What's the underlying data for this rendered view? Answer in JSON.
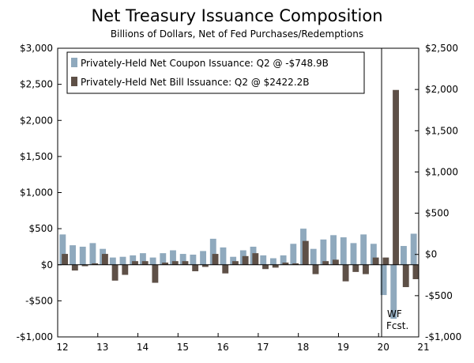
{
  "chart_data": {
    "type": "bar",
    "title": "Net Treasury Issuance Composition",
    "subtitle": "Billions of Dollars, Net of Fed Purchases/Redemptions",
    "left_axis": {
      "min": -1000,
      "max": 3000,
      "ticks": [
        "$3,000",
        "$2,500",
        "$2,000",
        "$1,500",
        "$1,000",
        "$500",
        "$0",
        "-$500",
        "-$1,000"
      ],
      "tick_values": [
        3000,
        2500,
        2000,
        1500,
        1000,
        500,
        0,
        -500,
        -1000
      ]
    },
    "right_axis": {
      "min": -1000,
      "max": 2500,
      "ticks": [
        "$2,500",
        "$2,000",
        "$1,500",
        "$1,000",
        "$500",
        "$0",
        "-$500",
        "-$1,000"
      ],
      "tick_values": [
        2500,
        2000,
        1500,
        1000,
        500,
        0,
        -500,
        -1000
      ]
    },
    "x_labels": [
      "12",
      "13",
      "14",
      "15",
      "16",
      "17",
      "18",
      "19",
      "20",
      "21"
    ],
    "legend": [
      "Privately-Held Net Coupon Issuance: Q2 @ -$748.9B",
      "Privately-Held Net Bill Issuance: Q2 @ $2422.2B"
    ],
    "annotation": {
      "line1": "WF",
      "line2": "Fcst."
    },
    "series": [
      {
        "name": "coupon",
        "color": "#8fa9bd",
        "values": [
          420,
          270,
          250,
          300,
          220,
          100,
          110,
          130,
          160,
          100,
          160,
          200,
          150,
          140,
          190,
          360,
          240,
          110,
          200,
          250,
          130,
          90,
          130,
          290,
          500,
          220,
          350,
          410,
          380,
          300,
          420,
          290,
          -420,
          -749,
          260,
          430
        ]
      },
      {
        "name": "bill",
        "color": "#5e5047",
        "values": [
          150,
          -80,
          -20,
          20,
          150,
          -220,
          -140,
          50,
          50,
          -250,
          30,
          50,
          50,
          -90,
          -30,
          150,
          -120,
          50,
          120,
          160,
          -60,
          -40,
          30,
          20,
          330,
          -130,
          50,
          70,
          -230,
          -100,
          -130,
          100,
          100,
          2422,
          -310,
          -200
        ]
      }
    ]
  }
}
